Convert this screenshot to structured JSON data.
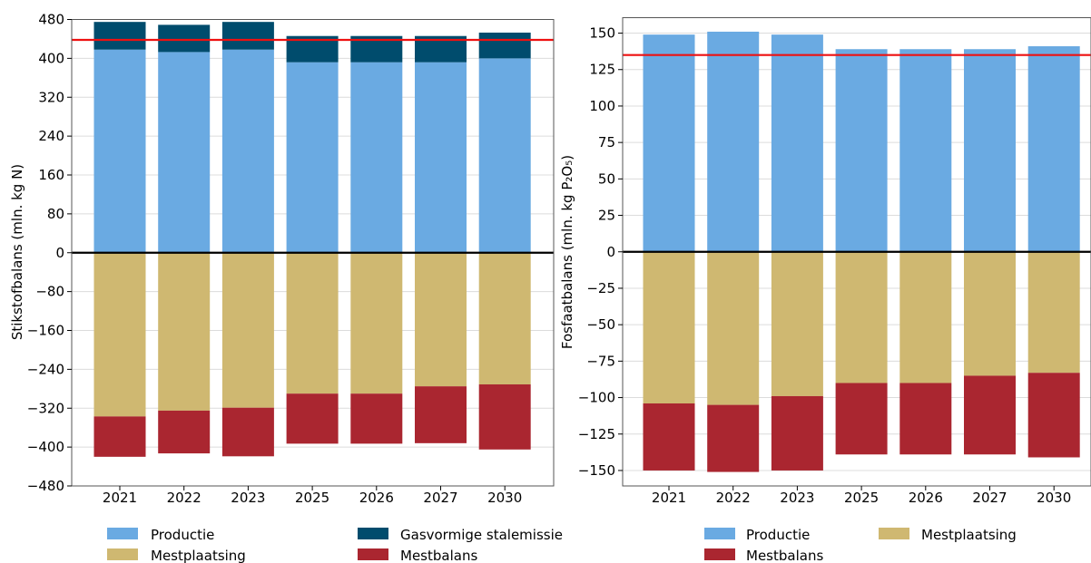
{
  "chart_data": [
    {
      "type": "bar",
      "stacked": true,
      "ylabel": "Stikstofbalans (mln. kg N)",
      "ylim": [
        -480,
        480
      ],
      "yticks": [
        480,
        400,
        320,
        240,
        160,
        80,
        0,
        -80,
        -160,
        -240,
        -320,
        -400,
        -480
      ],
      "ytick_labels": [
        "480",
        "400",
        "320",
        "240",
        "160",
        "80",
        "0",
        "−80",
        "−160",
        "−240",
        "−320",
        "−400",
        "−480"
      ],
      "categories": [
        "2021",
        "2022",
        "2023",
        "2025",
        "2026",
        "2027",
        "2030"
      ],
      "reference_line": 438,
      "series": [
        {
          "name": "Productie",
          "color": "#6aaae2",
          "values": [
            418,
            413,
            418,
            392,
            392,
            392,
            400
          ]
        },
        {
          "name": "Gasvormige stalemissie",
          "color": "#004c6d",
          "values": [
            57,
            56,
            57,
            54,
            54,
            54,
            53
          ]
        },
        {
          "name": "Mestplaatsing",
          "color": "#cfb871",
          "values": [
            -337,
            -325,
            -319,
            -290,
            -290,
            -275,
            -271
          ]
        },
        {
          "name": "Mestbalans",
          "color": "#aa2630",
          "values": [
            -83,
            -88,
            -100,
            -103,
            -103,
            -117,
            -134
          ]
        }
      ],
      "grid": true,
      "legend": "bottom"
    },
    {
      "type": "bar",
      "stacked": true,
      "ylabel": "Fosfaatbalans (mln. kg P₂O₅)",
      "ylim": [
        -160,
        160
      ],
      "yticks": [
        150,
        125,
        100,
        75,
        50,
        25,
        0,
        -25,
        -50,
        -75,
        -100,
        -125,
        -150
      ],
      "ytick_labels": [
        "150",
        "125",
        "100",
        "75",
        "50",
        "25",
        "0",
        "−25",
        "−50",
        "−75",
        "−100",
        "−125",
        "−150"
      ],
      "categories": [
        "2021",
        "2022",
        "2023",
        "2025",
        "2026",
        "2027",
        "2030"
      ],
      "reference_line": 135,
      "series": [
        {
          "name": "Productie",
          "color": "#6aaae2",
          "values": [
            149,
            151,
            149,
            139,
            139,
            139,
            141
          ]
        },
        {
          "name": "Mestplaatsing",
          "color": "#cfb871",
          "values": [
            -104,
            -105,
            -99,
            -90,
            -90,
            -85,
            -83
          ]
        },
        {
          "name": "Mestbalans",
          "color": "#aa2630",
          "values": [
            -46,
            -46,
            -51,
            -49,
            -49,
            -54,
            -58
          ]
        }
      ],
      "grid": true,
      "legend": "bottom"
    }
  ],
  "colors": {
    "reference_line": "#ee1111",
    "zero_line": "#000000",
    "grid": "#dcdcdc",
    "frame": "#555555"
  }
}
